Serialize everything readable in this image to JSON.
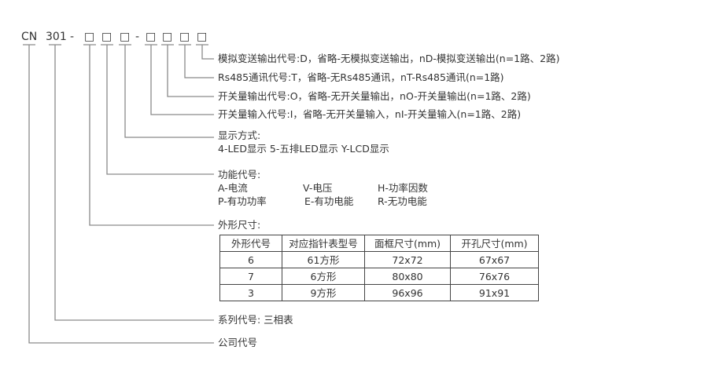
{
  "code": {
    "prefix": "CN",
    "series": "301",
    "dash": "-",
    "box": "□"
  },
  "items": {
    "analog": "模拟变送输出代号:D，省略-无模拟变送输出，nD-模拟变送输出(n=1路、2路)",
    "rs485": "Rs485通讯代号:T，省略-无Rs485通讯，nT-Rs485通讯(n=1路)",
    "switch_out": "开关量输出代号:O，省略-无开关量输出，nO-开关量输出(n=1路、2路)",
    "switch_in": "开关量输入代号:I，省略-无开关量输入，nI-开关量输入(n=1路、2路)",
    "display_title": "显示方式:",
    "display_options": "4-LED显示 5-五排LED显示 Y-LCD显示",
    "function_title": "功能代号:",
    "functions": [
      "A-电流",
      "V-电压",
      "H-功率因数",
      "P-有功功率",
      "E-有功电能",
      "R-无功电能"
    ],
    "size_title": "外形尺寸:",
    "series": "系列代号: 三相表",
    "company": "公司代号"
  },
  "table": {
    "headers": [
      "外形代号",
      "对应指针表型号",
      "面框尺寸(mm)",
      "开孔尺寸(mm)"
    ],
    "rows": [
      [
        "6",
        "61方形",
        "72x72",
        "67x67"
      ],
      [
        "7",
        "6方形",
        "80x80",
        "76x76"
      ],
      [
        "3",
        "9方形",
        "96x96",
        "91x91"
      ]
    ]
  }
}
